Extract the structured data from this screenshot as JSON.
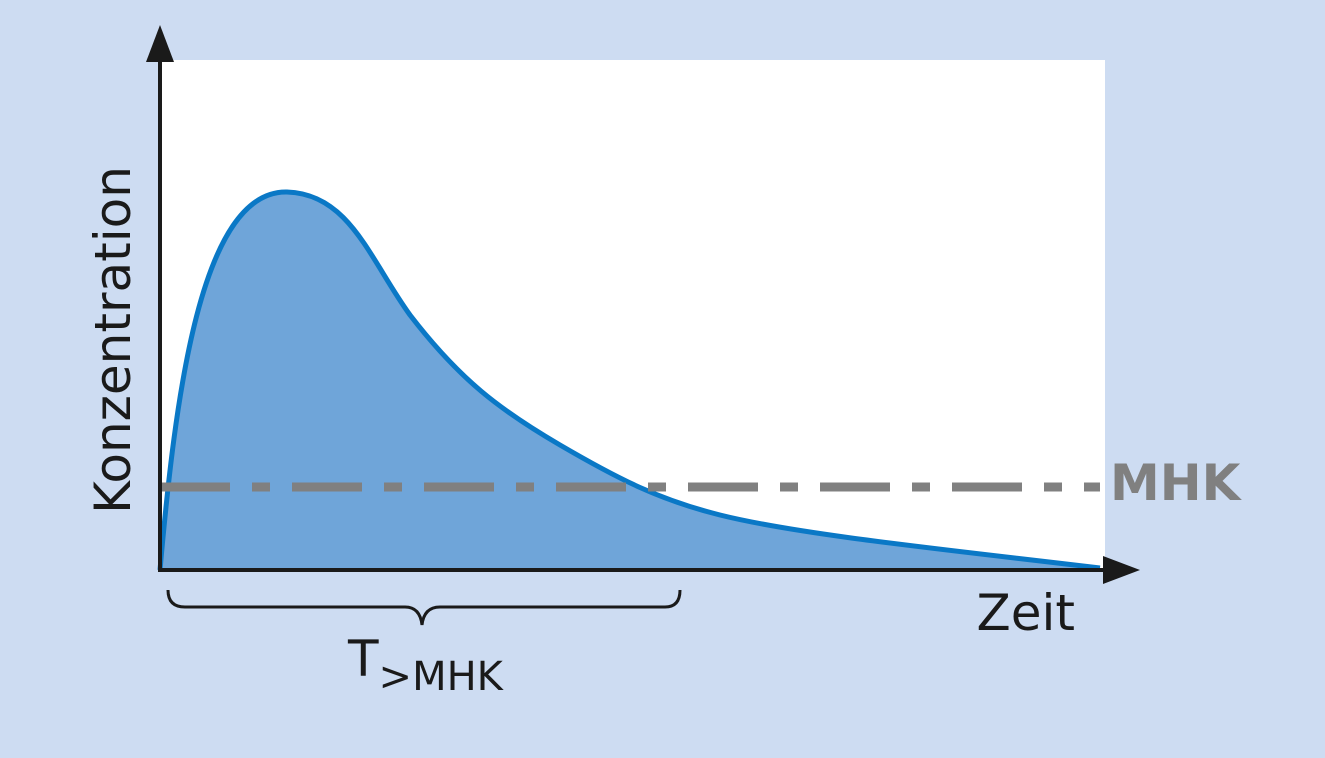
{
  "axes": {
    "y_label": "Konzentration",
    "x_label": "Zeit"
  },
  "threshold": {
    "label": "MHK"
  },
  "interval": {
    "label": "T",
    "subscript": ">MHK"
  }
}
